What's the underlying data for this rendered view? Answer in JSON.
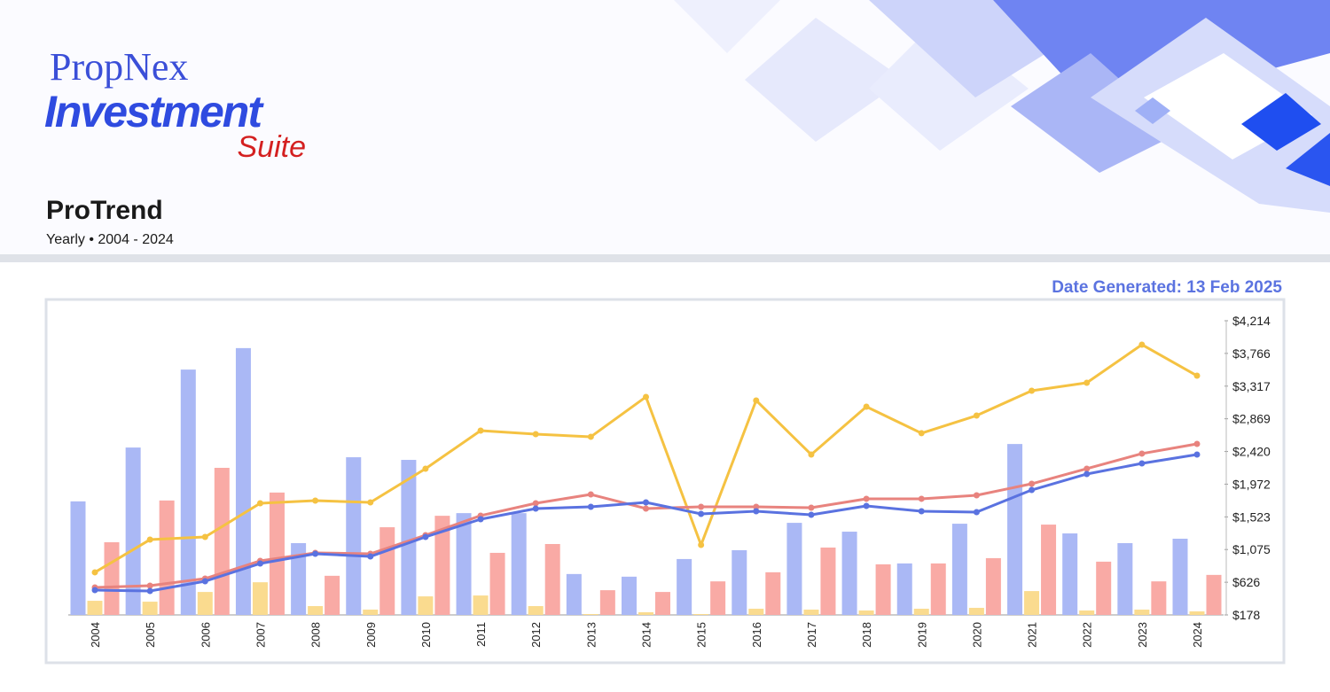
{
  "header": {
    "logo_brand": "PropNex",
    "logo_product": "Investment",
    "logo_suffix": "Suite",
    "title": "ProTrend",
    "subtitle": "Yearly • 2004 - 2024",
    "date_generated": "Date Generated: 13 Feb 2025"
  },
  "chart_data": {
    "type": "combo",
    "categories": [
      "2004",
      "2005",
      "2006",
      "2007",
      "2008",
      "2009",
      "2010",
      "2011",
      "2012",
      "2013",
      "2014",
      "2015",
      "2016",
      "2017",
      "2018",
      "2019",
      "2020",
      "2021",
      "2022",
      "2023",
      "2024"
    ],
    "ylim": [
      178,
      4214
    ],
    "yticks": [
      {
        "value": 178,
        "label": "$178"
      },
      {
        "value": 626,
        "label": "$626"
      },
      {
        "value": 1075,
        "label": "$1,075"
      },
      {
        "value": 1523,
        "label": "$1,523"
      },
      {
        "value": 1972,
        "label": "$1,972"
      },
      {
        "value": 2420,
        "label": "$2,420"
      },
      {
        "value": 2869,
        "label": "$2,869"
      },
      {
        "value": 3317,
        "label": "$3,317"
      },
      {
        "value": 3766,
        "label": "$3,766"
      },
      {
        "value": 4214,
        "label": "$4,214"
      }
    ],
    "y2lim": [
      0,
      100
    ],
    "series": [
      {
        "type": "bar",
        "axis": "y2",
        "color": "#aab8f5",
        "values": [
          38.6,
          56.9,
          83.4,
          90.7,
          24.4,
          53.6,
          52.7,
          34.6,
          34.6,
          13.9,
          13.0,
          19.0,
          22.0,
          31.3,
          28.3,
          17.5,
          31.0,
          58.1,
          27.7,
          24.4,
          25.9
        ]
      },
      {
        "type": "bar",
        "axis": "y2",
        "color": "#fadb8f",
        "values": [
          4.8,
          4.5,
          7.8,
          11.1,
          3.0,
          1.8,
          6.3,
          6.6,
          3.0,
          0.3,
          0.9,
          0.3,
          2.1,
          1.8,
          1.5,
          2.1,
          2.4,
          8.1,
          1.5,
          1.8,
          1.2
        ]
      },
      {
        "type": "bar",
        "axis": "y2",
        "color": "#f9aaa5",
        "values": [
          24.7,
          38.9,
          50.0,
          41.6,
          13.3,
          29.8,
          33.7,
          21.1,
          24.1,
          8.4,
          7.8,
          11.4,
          14.5,
          22.9,
          17.2,
          17.5,
          19.3,
          30.7,
          18.1,
          11.4,
          13.6
        ]
      },
      {
        "type": "line",
        "color": "#f5c242",
        "values": [
          762,
          1211,
          1248,
          1710,
          1746,
          1722,
          2184,
          2707,
          2658,
          2622,
          3169,
          1138,
          3120,
          2378,
          3035,
          2671,
          2913,
          3254,
          3363,
          3886,
          3460
        ]
      },
      {
        "type": "line",
        "color": "#e8837e",
        "values": [
          555,
          579,
          676,
          920,
          1029,
          1017,
          1272,
          1540,
          1710,
          1831,
          1637,
          1661,
          1661,
          1649,
          1771,
          1771,
          1819,
          1977,
          2184,
          2391,
          2524
        ]
      },
      {
        "type": "line",
        "color": "#5a72e0",
        "values": [
          518,
          506,
          640,
          883,
          1017,
          980,
          1248,
          1491,
          1637,
          1661,
          1722,
          1564,
          1600,
          1552,
          1673,
          1600,
          1588,
          1892,
          2111,
          2257,
          2378
        ]
      }
    ]
  }
}
